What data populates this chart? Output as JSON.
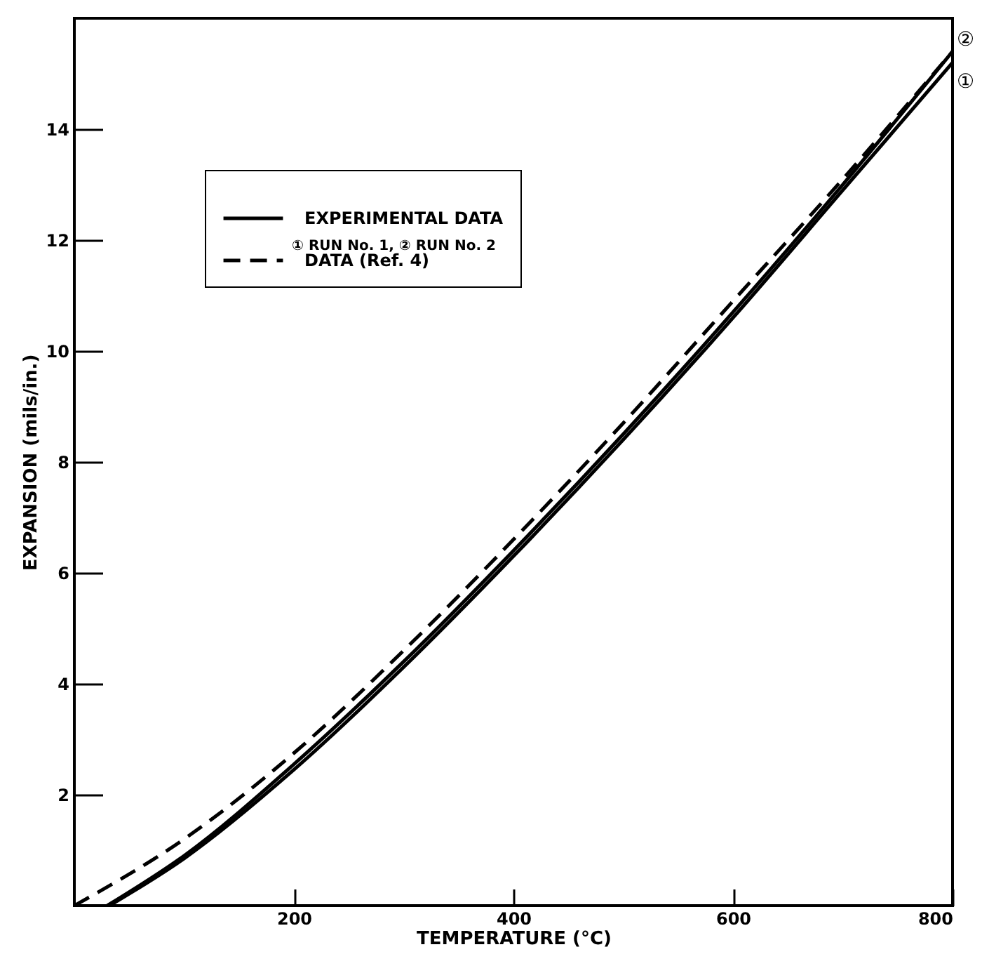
{
  "chart_data": {
    "type": "line",
    "xlabel": "TEMPERATURE (°C)",
    "ylabel": "EXPANSION (mils/in.)",
    "xlim": [
      0,
      800
    ],
    "ylim": [
      0,
      16
    ],
    "xticks": [
      200,
      400,
      600,
      800
    ],
    "yticks": [
      2,
      4,
      6,
      8,
      10,
      12,
      14
    ],
    "grid": false,
    "legend": "top left",
    "series": [
      {
        "name": "EXPERIMENTAL DATA",
        "color": "#000000",
        "line_style": "solid",
        "x": [
          32,
          100,
          200,
          300,
          400,
          500,
          600,
          700,
          800
        ],
        "values": [
          0,
          0.85,
          2.45,
          4.3,
          6.3,
          8.4,
          10.6,
          12.9,
          15.2
        ]
      },
      {
        "color": "#000000",
        "line_style": "solid",
        "x": [
          30,
          100,
          200,
          300,
          400,
          500,
          600,
          700,
          800
        ],
        "values": [
          0,
          0.9,
          2.55,
          4.4,
          6.4,
          8.5,
          10.7,
          13.0,
          15.4
        ]
      },
      {
        "name": "DATA (Ref. 4)",
        "color": "#000000",
        "line_style": "dashed",
        "x": [
          0,
          100,
          200,
          300,
          400,
          500,
          600,
          700,
          800
        ],
        "values": [
          0,
          1.2,
          2.75,
          4.6,
          6.6,
          8.7,
          10.9,
          13.1,
          15.4
        ]
      }
    ],
    "annotations": [
      "① RUN No. 1, ② RUN No. 2",
      {
        "text": "①",
        "x": 800,
        "y": 15.2
      },
      {
        "text": "②",
        "x": 800,
        "y": 15.4
      }
    ]
  }
}
